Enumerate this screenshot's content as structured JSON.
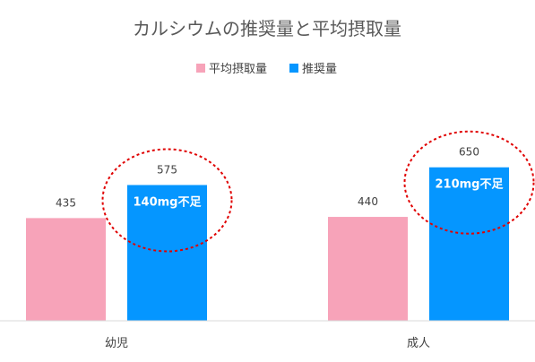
{
  "chart_data": {
    "type": "bar",
    "title": "カルシウムの推奨量と平均摂取量",
    "categories": [
      "幼児",
      "成人"
    ],
    "series": [
      {
        "name": "平均摂取量",
        "color": "#f7a3b9",
        "values": [
          435,
          440
        ]
      },
      {
        "name": "推奨量",
        "color": "#0596ff",
        "values": [
          575,
          650
        ]
      }
    ],
    "annotations": [
      "140mg不足",
      "210mg不足"
    ],
    "annotation_style": "red dashed ellipse around recommended bar",
    "axes": {
      "y_visible": false,
      "grid": false
    },
    "legend_position": "top-center",
    "colors": {
      "highlight_circle": "#e00000",
      "axis_line": "#d9d9d9"
    }
  }
}
